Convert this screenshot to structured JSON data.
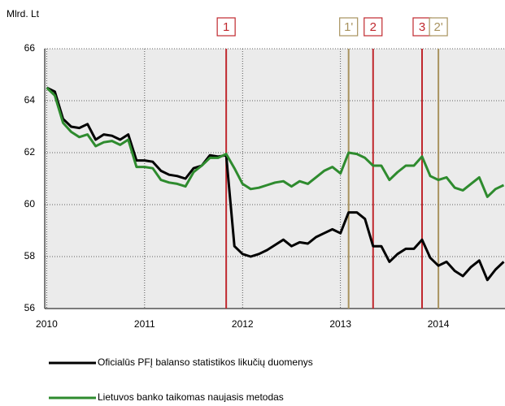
{
  "chart_data": {
    "type": "line",
    "y_label": "Mlrd. Lt",
    "x": [
      2010,
      2010.083,
      2010.167,
      2010.25,
      2010.333,
      2010.417,
      2010.5,
      2010.583,
      2010.667,
      2010.75,
      2010.833,
      2010.917,
      2011,
      2011.083,
      2011.167,
      2011.25,
      2011.333,
      2011.417,
      2011.5,
      2011.583,
      2011.667,
      2011.75,
      2011.833,
      2011.917,
      2012,
      2012.083,
      2012.167,
      2012.25,
      2012.333,
      2012.417,
      2012.5,
      2012.583,
      2012.667,
      2012.75,
      2012.833,
      2012.917,
      2013,
      2013.083,
      2013.167,
      2013.25,
      2013.333,
      2013.417,
      2013.5,
      2013.583,
      2013.667,
      2013.75,
      2013.833,
      2013.917,
      2014,
      2014.083,
      2014.167,
      2014.25,
      2014.333,
      2014.417,
      2014.5,
      2014.583,
      2014.667
    ],
    "series": [
      {
        "name": "Oficialūs PFĮ balanso statistikos likučių duomenys",
        "color": "#000000",
        "values": [
          64.5,
          64.35,
          63.3,
          63.0,
          62.95,
          63.1,
          62.5,
          62.7,
          62.65,
          62.5,
          62.7,
          61.7,
          61.7,
          61.65,
          61.3,
          61.15,
          61.1,
          61.0,
          61.4,
          61.5,
          61.9,
          61.85,
          61.9,
          58.4,
          58.1,
          58.0,
          58.1,
          58.25,
          58.45,
          58.65,
          58.4,
          58.55,
          58.5,
          58.75,
          58.9,
          59.05,
          58.9,
          59.7,
          59.7,
          59.45,
          58.4,
          58.4,
          57.8,
          58.1,
          58.3,
          58.3,
          58.65,
          57.95,
          57.65,
          57.8,
          57.45,
          57.25,
          57.6,
          57.85,
          57.1,
          57.5,
          57.8
        ]
      },
      {
        "name": "Lietuvos banko taikomas naujasis metodas",
        "color": "#2e8b2e",
        "values": [
          64.5,
          64.2,
          63.15,
          62.8,
          62.6,
          62.7,
          62.25,
          62.4,
          62.45,
          62.3,
          62.5,
          61.45,
          61.45,
          61.4,
          60.95,
          60.85,
          60.8,
          60.7,
          61.25,
          61.5,
          61.8,
          61.8,
          61.95,
          61.4,
          60.8,
          60.6,
          60.65,
          60.75,
          60.85,
          60.9,
          60.7,
          60.9,
          60.8,
          61.05,
          61.3,
          61.45,
          61.2,
          62.0,
          61.95,
          61.8,
          61.5,
          61.5,
          60.95,
          61.25,
          61.5,
          61.5,
          61.85,
          61.1,
          60.95,
          61.05,
          60.65,
          60.55,
          60.8,
          61.05,
          60.3,
          60.6,
          60.75
        ]
      }
    ],
    "events": [
      {
        "label": "1",
        "x": 2011.833,
        "color": "#c0282e"
      },
      {
        "label": "1'",
        "x": 2013.083,
        "color": "#a8925e"
      },
      {
        "label": "2",
        "x": 2013.333,
        "color": "#c0282e"
      },
      {
        "label": "3",
        "x": 2013.833,
        "color": "#c0282e"
      },
      {
        "label": "2'",
        "x": 2014.0,
        "color": "#a8925e"
      }
    ],
    "xlim": [
      2009.98,
      2014.68
    ],
    "xticks": [
      2010,
      2011,
      2012,
      2013,
      2014
    ],
    "ylim": [
      56,
      66
    ],
    "yticks": [
      56,
      58,
      60,
      62,
      64,
      66
    ],
    "grid": true
  }
}
